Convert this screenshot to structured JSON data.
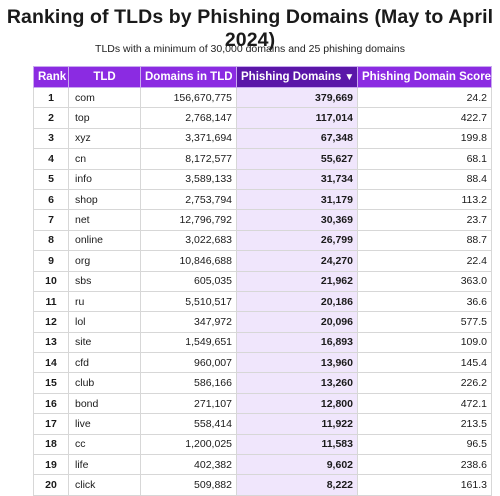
{
  "chart_data": {
    "type": "table",
    "title": "Ranking of TLDs by Phishing Domains (May to April 2024)",
    "subtitle": "TLDs with a minimum of 30,000 domains and 25 phishing domains",
    "columns": [
      "Rank",
      "TLD",
      "Domains in TLD",
      "Phishing Domains",
      "Phishing Domain Score"
    ],
    "sorted_column": "Phishing Domains",
    "sort_indicator": "▼",
    "accent_color": "#8b2be2",
    "sorted_header_color": "#5a16a8",
    "highlight_column_color": "#f0e6fc",
    "rows": [
      {
        "rank": "1",
        "tld": "com",
        "domains": "156,670,775",
        "phishing": "379,669",
        "score": "24.2"
      },
      {
        "rank": "2",
        "tld": "top",
        "domains": "2,768,147",
        "phishing": "117,014",
        "score": "422.7"
      },
      {
        "rank": "3",
        "tld": "xyz",
        "domains": "3,371,694",
        "phishing": "67,348",
        "score": "199.8"
      },
      {
        "rank": "4",
        "tld": "cn",
        "domains": "8,172,577",
        "phishing": "55,627",
        "score": "68.1"
      },
      {
        "rank": "5",
        "tld": "info",
        "domains": "3,589,133",
        "phishing": "31,734",
        "score": "88.4"
      },
      {
        "rank": "6",
        "tld": "shop",
        "domains": "2,753,794",
        "phishing": "31,179",
        "score": "113.2"
      },
      {
        "rank": "7",
        "tld": "net",
        "domains": "12,796,792",
        "phishing": "30,369",
        "score": "23.7"
      },
      {
        "rank": "8",
        "tld": "online",
        "domains": "3,022,683",
        "phishing": "26,799",
        "score": "88.7"
      },
      {
        "rank": "9",
        "tld": "org",
        "domains": "10,846,688",
        "phishing": "24,270",
        "score": "22.4"
      },
      {
        "rank": "10",
        "tld": "sbs",
        "domains": "605,035",
        "phishing": "21,962",
        "score": "363.0"
      },
      {
        "rank": "11",
        "tld": "ru",
        "domains": "5,510,517",
        "phishing": "20,186",
        "score": "36.6"
      },
      {
        "rank": "12",
        "tld": "lol",
        "domains": "347,972",
        "phishing": "20,096",
        "score": "577.5"
      },
      {
        "rank": "13",
        "tld": "site",
        "domains": "1,549,651",
        "phishing": "16,893",
        "score": "109.0"
      },
      {
        "rank": "14",
        "tld": "cfd",
        "domains": "960,007",
        "phishing": "13,960",
        "score": "145.4"
      },
      {
        "rank": "15",
        "tld": "club",
        "domains": "586,166",
        "phishing": "13,260",
        "score": "226.2"
      },
      {
        "rank": "16",
        "tld": "bond",
        "domains": "271,107",
        "phishing": "12,800",
        "score": "472.1"
      },
      {
        "rank": "17",
        "tld": "live",
        "domains": "558,414",
        "phishing": "11,922",
        "score": "213.5"
      },
      {
        "rank": "18",
        "tld": "cc",
        "domains": "1,200,025",
        "phishing": "11,583",
        "score": "96.5"
      },
      {
        "rank": "19",
        "tld": "life",
        "domains": "402,382",
        "phishing": "9,602",
        "score": "238.6"
      },
      {
        "rank": "20",
        "tld": "click",
        "domains": "509,882",
        "phishing": "8,222",
        "score": "161.3"
      }
    ]
  }
}
